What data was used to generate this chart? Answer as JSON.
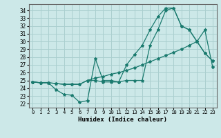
{
  "xlabel": "Humidex (Indice chaleur)",
  "ylabel": "",
  "background_color": "#cce8e8",
  "grid_color": "#aacfcf",
  "line_color": "#1a7a6e",
  "xlim": [
    -0.5,
    23.5
  ],
  "ylim": [
    21.5,
    34.8
  ],
  "xticks": [
    0,
    1,
    2,
    3,
    4,
    5,
    6,
    7,
    8,
    9,
    10,
    11,
    12,
    13,
    14,
    15,
    16,
    17,
    18,
    19,
    20,
    21,
    22,
    23
  ],
  "yticks": [
    22,
    23,
    24,
    25,
    26,
    27,
    28,
    29,
    30,
    31,
    32,
    33,
    34
  ],
  "series": [
    {
      "x": [
        0,
        1,
        2,
        3,
        4,
        5,
        6,
        7,
        8,
        9,
        10,
        11,
        12,
        13,
        14,
        15,
        16,
        17,
        18,
        19,
        20,
        21,
        22,
        23
      ],
      "y": [
        24.8,
        24.7,
        24.7,
        24.6,
        24.5,
        24.5,
        24.5,
        25.0,
        25.3,
        25.5,
        25.8,
        26.0,
        26.3,
        26.6,
        27.0,
        27.4,
        27.8,
        28.2,
        28.6,
        29.0,
        29.5,
        30.0,
        31.5,
        26.7
      ]
    },
    {
      "x": [
        0,
        1,
        2,
        3,
        4,
        5,
        6,
        7,
        8,
        9,
        10,
        11,
        12,
        13,
        14,
        15,
        16,
        17,
        18,
        19,
        20,
        21,
        22,
        23
      ],
      "y": [
        24.8,
        24.7,
        24.7,
        23.8,
        23.2,
        23.1,
        22.2,
        22.4,
        27.8,
        25.0,
        25.0,
        24.8,
        27.0,
        28.3,
        29.5,
        31.5,
        33.2,
        34.3,
        34.3,
        32.0,
        31.5,
        30.0,
        28.5,
        27.5
      ]
    },
    {
      "x": [
        0,
        1,
        2,
        3,
        4,
        5,
        6,
        7,
        8,
        9,
        10,
        11,
        12,
        13,
        14,
        15,
        16,
        17,
        18,
        19,
        20,
        21,
        22,
        23
      ],
      "y": [
        24.8,
        24.7,
        24.7,
        24.6,
        24.5,
        24.5,
        24.5,
        25.0,
        25.0,
        24.8,
        24.8,
        24.8,
        25.0,
        25.0,
        25.0,
        29.5,
        31.5,
        34.0,
        34.3,
        32.0,
        31.5,
        30.0,
        28.5,
        27.5
      ]
    }
  ]
}
